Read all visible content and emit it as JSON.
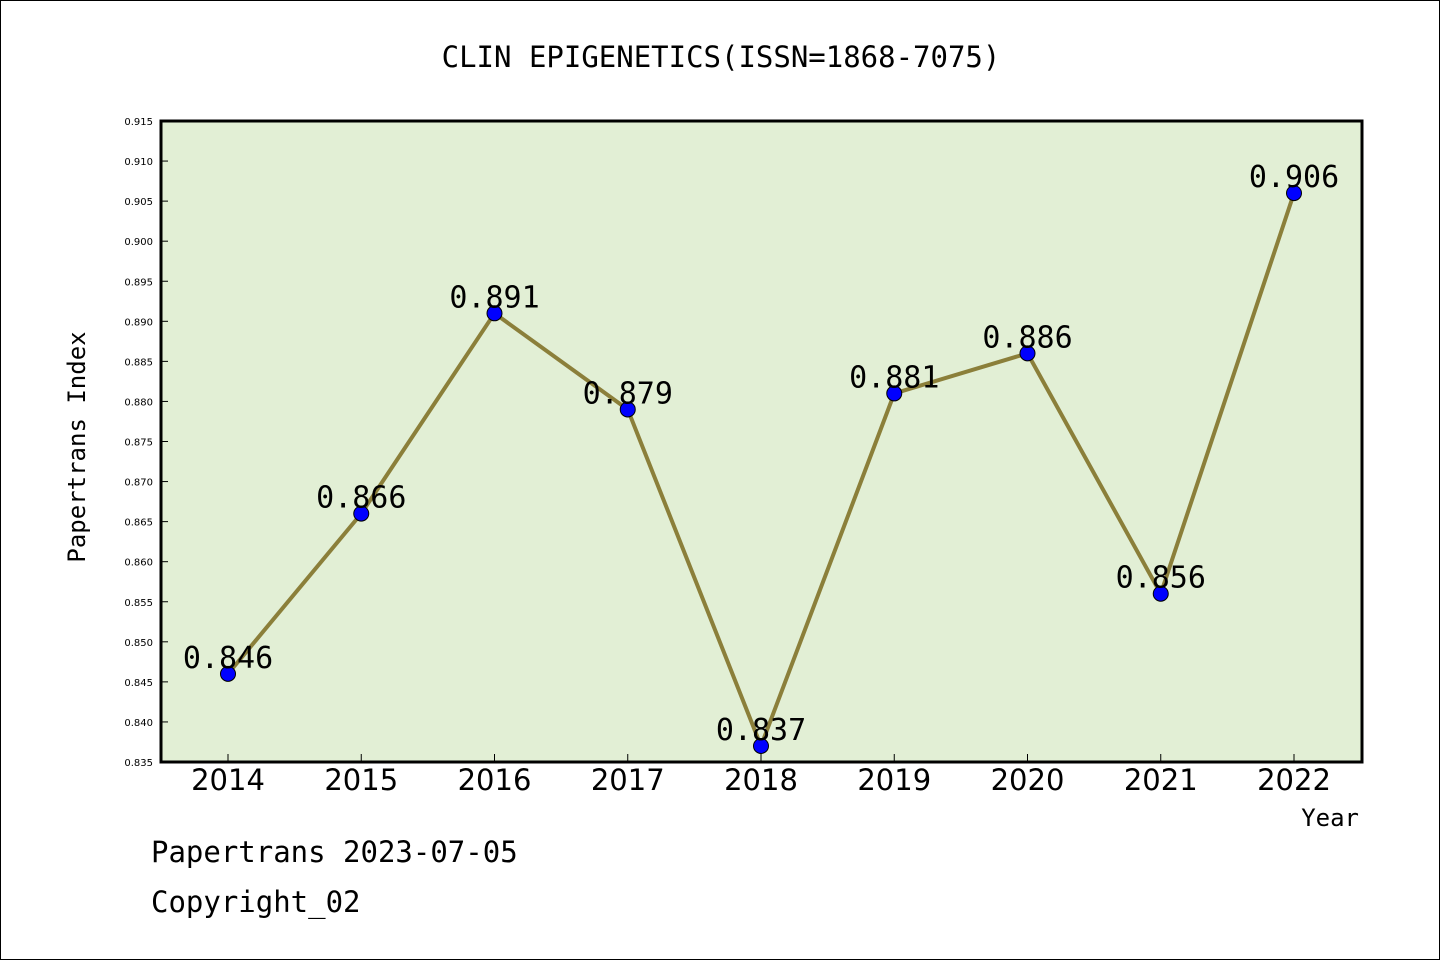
{
  "chart_data": {
    "type": "line",
    "title": "CLIN EPIGENETICS(ISSN=1868-7075)",
    "xlabel": "Year",
    "ylabel": "Papertrans Index",
    "categories": [
      "2014",
      "2015",
      "2016",
      "2017",
      "2018",
      "2019",
      "2020",
      "2021",
      "2022"
    ],
    "values": [
      0.846,
      0.866,
      0.891,
      0.879,
      0.837,
      0.881,
      0.886,
      0.856,
      0.906
    ],
    "data_labels": [
      "0.846",
      "0.866",
      "0.891",
      "0.879",
      "0.837",
      "0.881",
      "0.886",
      "0.856",
      "0.906"
    ],
    "ylim": [
      0.835,
      0.915
    ],
    "yticks": [
      "0.835",
      "0.840",
      "0.845",
      "0.850",
      "0.855",
      "0.860",
      "0.865",
      "0.870",
      "0.875",
      "0.880",
      "0.885",
      "0.890",
      "0.895",
      "0.900",
      "0.905",
      "0.910",
      "0.915"
    ],
    "grid": false,
    "colors": {
      "plot_background": "#e2efd5",
      "line": "#8b7f3a",
      "marker": "#0000ff"
    }
  },
  "footer": {
    "line1": "Papertrans 2023-07-05",
    "line2": "Copyright_02"
  }
}
